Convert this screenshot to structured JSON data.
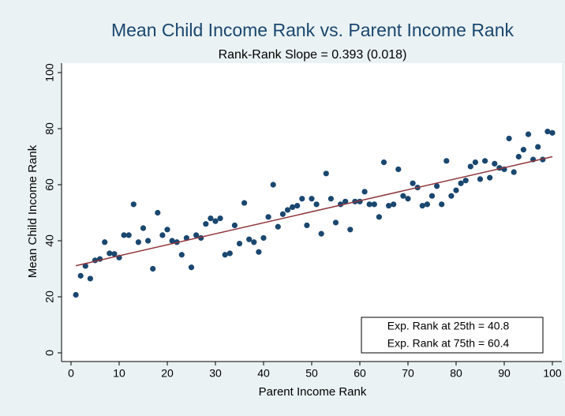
{
  "chart_data": {
    "type": "scatter",
    "title": "Mean Child Income Rank vs. Parent Income Rank",
    "subtitle": "Rank-Rank Slope = 0.393 (0.018)",
    "xlabel": "Parent Income Rank",
    "ylabel": "Mean Child Income Rank",
    "x": [
      1,
      2,
      3,
      4,
      5,
      6,
      7,
      8,
      9,
      10,
      11,
      12,
      13,
      14,
      15,
      16,
      17,
      18,
      19,
      20,
      21,
      22,
      23,
      24,
      25,
      26,
      27,
      28,
      29,
      30,
      31,
      32,
      33,
      34,
      35,
      36,
      37,
      38,
      39,
      40,
      41,
      42,
      43,
      44,
      45,
      46,
      47,
      48,
      49,
      50,
      51,
      52,
      53,
      54,
      55,
      56,
      57,
      58,
      59,
      60,
      61,
      62,
      63,
      64,
      65,
      66,
      67,
      68,
      69,
      70,
      71,
      72,
      73,
      74,
      75,
      76,
      77,
      78,
      79,
      80,
      81,
      82,
      83,
      84,
      85,
      86,
      87,
      88,
      89,
      90,
      91,
      92,
      93,
      94,
      95,
      96,
      97,
      98,
      99,
      100
    ],
    "values": [
      20.7,
      27.5,
      31,
      26.5,
      33,
      33.5,
      39.5,
      35.5,
      35.3,
      34,
      42,
      42,
      53,
      39.5,
      44.5,
      40,
      30,
      50,
      42,
      44,
      40,
      39.5,
      35,
      41,
      30.5,
      42,
      41,
      46,
      48,
      47,
      48,
      35,
      35.5,
      45.5,
      39,
      53.5,
      40.5,
      39.5,
      36,
      41,
      48.5,
      60,
      45,
      49.5,
      51,
      52,
      52.5,
      55,
      45.5,
      55,
      53,
      42.5,
      64,
      55,
      46.5,
      53,
      54,
      44,
      54,
      54,
      57.5,
      53,
      53,
      48.5,
      68,
      52.5,
      53,
      65.5,
      56,
      55,
      60.5,
      59,
      52.5,
      53,
      56,
      59.5,
      53,
      68.5,
      56,
      58,
      60.5,
      61.5,
      66.5,
      68,
      62,
      68.5,
      62.5,
      67.5,
      66,
      65.5,
      76.5,
      64.5,
      70,
      72.5,
      78,
      69,
      73.5,
      69,
      79,
      78.5
    ],
    "color": "#1a476f",
    "fit_line": {
      "x": [
        1,
        100
      ],
      "values": [
        31.1,
        70.0
      ],
      "color": "#90353b"
    },
    "annotations": [
      "Exp. Rank at 25th = 40.8",
      "Exp. Rank at 75th = 60.4"
    ],
    "xlim": [
      0,
      100
    ],
    "ylim": [
      0,
      100
    ],
    "xticks": [
      0,
      10,
      20,
      30,
      40,
      50,
      60,
      70,
      80,
      90,
      100
    ],
    "yticks": [
      0,
      20,
      40,
      60,
      80,
      100
    ]
  }
}
